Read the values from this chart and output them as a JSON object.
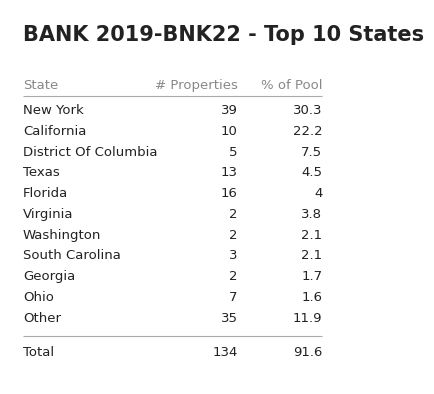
{
  "title": "BANK 2019-BNK22 - Top 10 States",
  "header": [
    "State",
    "# Properties",
    "% of Pool"
  ],
  "rows": [
    [
      "New York",
      "39",
      "30.3"
    ],
    [
      "California",
      "10",
      "22.2"
    ],
    [
      "District Of Columbia",
      "5",
      "7.5"
    ],
    [
      "Texas",
      "13",
      "4.5"
    ],
    [
      "Florida",
      "16",
      "4"
    ],
    [
      "Virginia",
      "2",
      "3.8"
    ],
    [
      "Washington",
      "2",
      "2.1"
    ],
    [
      "South Carolina",
      "3",
      "2.1"
    ],
    [
      "Georgia",
      "2",
      "1.7"
    ],
    [
      "Ohio",
      "7",
      "1.6"
    ],
    [
      "Other",
      "35",
      "11.9"
    ]
  ],
  "footer": [
    "Total",
    "134",
    "91.6"
  ],
  "bg_color": "#ffffff",
  "title_color": "#222222",
  "header_color": "#888888",
  "row_color": "#222222",
  "footer_color": "#222222",
  "line_color": "#aaaaaa",
  "title_fontsize": 15,
  "header_fontsize": 9.5,
  "row_fontsize": 9.5,
  "footer_fontsize": 9.5
}
